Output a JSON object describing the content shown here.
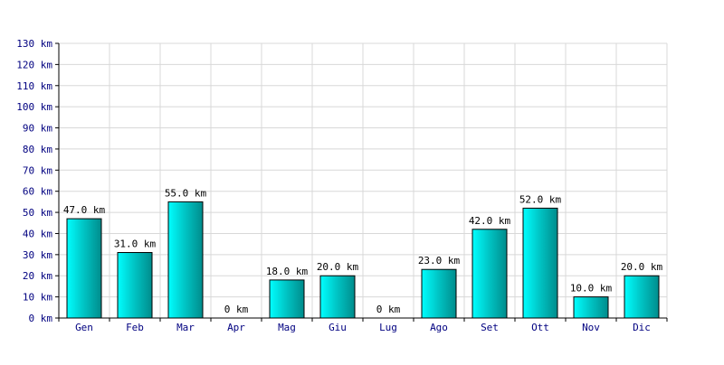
{
  "colors": {
    "bar_top": "#00ffff",
    "bar_mid": "#00c8c8",
    "bar_bottom": "#008c8c",
    "bar_stroke": "#000000",
    "grid": "#d8d8d8",
    "axis": "#000000",
    "tick_label": "#000080",
    "data_label": "#000000"
  },
  "chart_data": {
    "type": "bar",
    "title": "",
    "xlabel": "",
    "ylabel": "",
    "unit": "km",
    "categories": [
      "Gen",
      "Feb",
      "Mar",
      "Apr",
      "Mag",
      "Giu",
      "Lug",
      "Ago",
      "Set",
      "Ott",
      "Nov",
      "Dic"
    ],
    "values": [
      47.0,
      31.0,
      55.0,
      0,
      18.0,
      20.0,
      0,
      23.0,
      42.0,
      52.0,
      10.0,
      20.0
    ],
    "data_labels": [
      "47.0 km",
      "31.0 km",
      "55.0 km",
      "0 km",
      "18.0 km",
      "20.0 km",
      "0 km",
      "23.0 km",
      "42.0 km",
      "52.0 km",
      "10.0 km",
      "20.0 km"
    ],
    "y_ticks": [
      0,
      10,
      20,
      30,
      40,
      50,
      60,
      70,
      80,
      90,
      100,
      110,
      120,
      130
    ],
    "y_tick_labels": [
      "0 km",
      "10 km",
      "20 km",
      "30 km",
      "40 km",
      "50 km",
      "60 km",
      "70 km",
      "80 km",
      "90 km",
      "100 km",
      "110 km",
      "120 km",
      "130 km"
    ],
    "ylim": [
      0,
      130
    ],
    "grid": true,
    "legend": "none"
  }
}
